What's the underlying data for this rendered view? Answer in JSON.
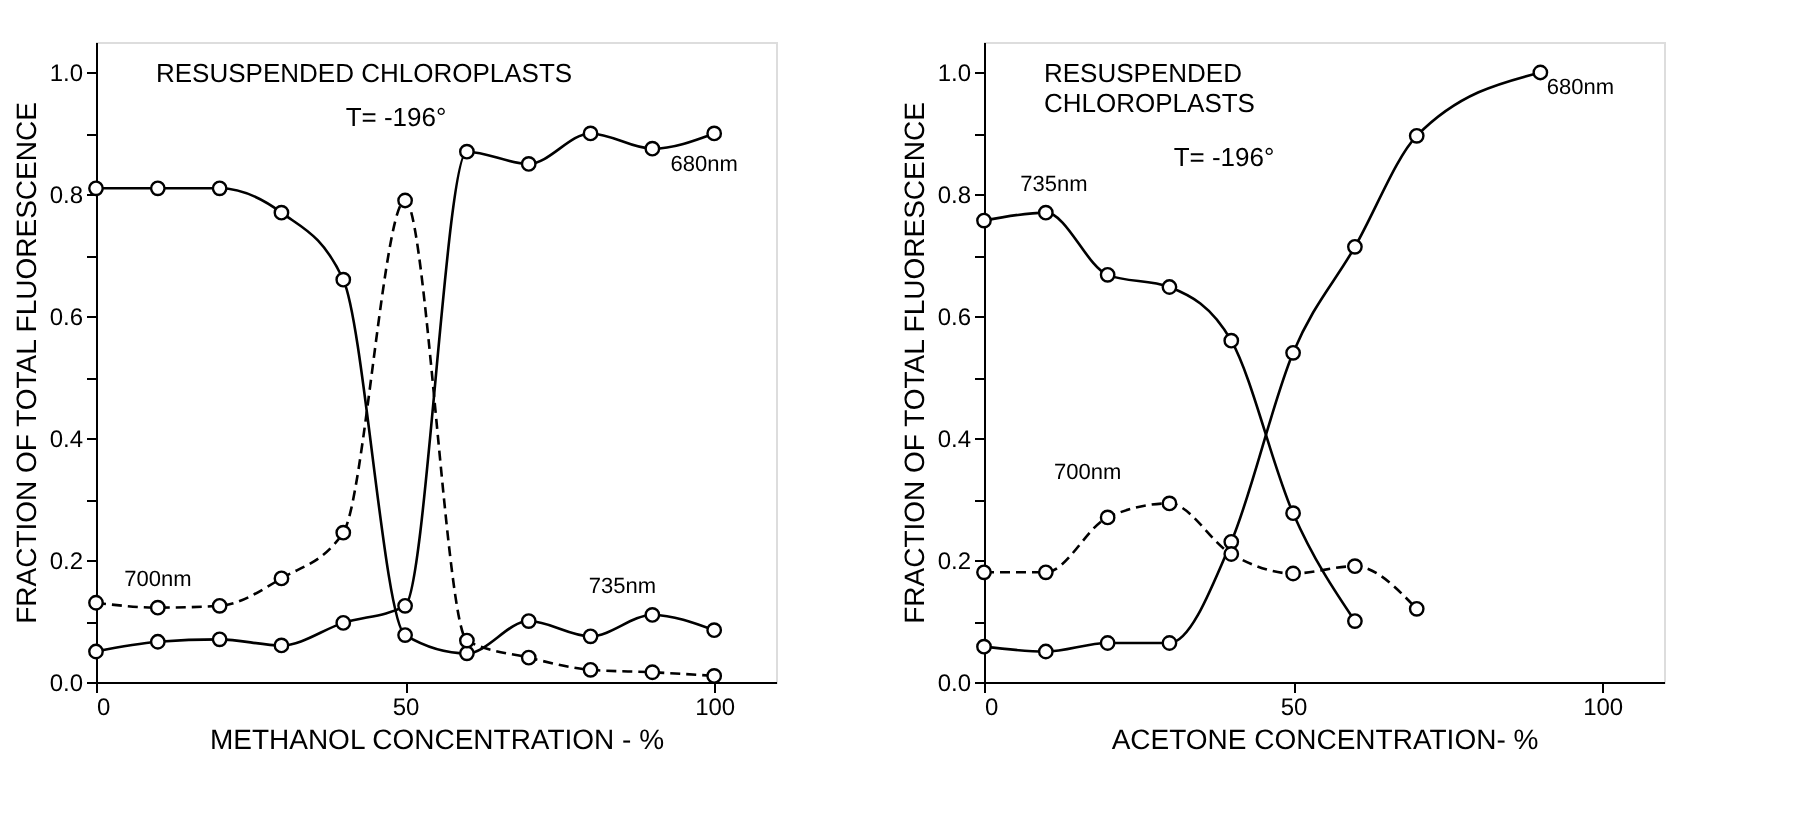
{
  "chart_data": [
    {
      "type": "line",
      "title": "RESUSPENDED      CHLOROPLASTS",
      "subtitle": "T= -196°",
      "xlabel": "METHANOL   CONCENTRATION - %",
      "ylabel": "FRACTION OF TOTAL FLUORESCENCE",
      "xlim": [
        0,
        110
      ],
      "xticks": [
        0,
        50,
        100
      ],
      "ylim": [
        0,
        1.05
      ],
      "yticks": [
        {
          "value": 0,
          "label": "0.0"
        },
        {
          "value": 0.1,
          "label": null
        },
        0.2,
        {
          "value": 0.3,
          "label": null
        },
        0.4,
        {
          "value": 0.5,
          "label": null
        },
        0.6,
        {
          "value": 0.7,
          "label": null
        },
        0.8,
        {
          "value": 0.9,
          "label": null
        },
        {
          "value": 1.0,
          "label": "1.0"
        }
      ],
      "grid": false,
      "marker": "circle",
      "series": [
        {
          "name": "680nm",
          "color": "#000000",
          "line_style": "solid",
          "x": [
            0,
            10,
            20,
            30,
            40,
            50,
            60,
            70,
            80,
            90,
            100
          ],
          "values": [
            0.05,
            0.066,
            0.07,
            0.06,
            0.097,
            0.125,
            0.87,
            0.85,
            0.9,
            0.875,
            0.9
          ]
        },
        {
          "name": "735nm",
          "color": "#000000",
          "line_style": "solid",
          "x": [
            0,
            10,
            20,
            30,
            40,
            50,
            60,
            70,
            80,
            90,
            100
          ],
          "values": [
            0.81,
            0.81,
            0.81,
            0.77,
            0.66,
            0.077,
            0.047,
            0.1,
            0.075,
            0.11,
            0.085
          ]
        },
        {
          "name": "700nm",
          "color": "#000000",
          "line_style": "dashed",
          "x": [
            0,
            10,
            20,
            30,
            40,
            50,
            60,
            70,
            80,
            90,
            100
          ],
          "values": [
            0.13,
            0.122,
            0.125,
            0.17,
            0.245,
            0.79,
            0.068,
            0.04,
            0.02,
            0.016,
            0.01
          ]
        }
      ]
    },
    {
      "type": "line",
      "title": "RESUSPENDED CHLOROPLASTS",
      "subtitle": "T= -196°",
      "xlabel": "ACETONE CONCENTRATION-   %",
      "ylabel": "FRACTION OF TOTAL FLUORESCENCE",
      "xlim": [
        0,
        110
      ],
      "xticks": [
        0,
        50,
        100
      ],
      "ylim": [
        0,
        1.05
      ],
      "yticks": [
        {
          "value": 0,
          "label": "0.0"
        },
        {
          "value": 0.1,
          "label": null
        },
        0.2,
        {
          "value": 0.3,
          "label": null
        },
        0.4,
        {
          "value": 0.5,
          "label": null
        },
        0.6,
        {
          "value": 0.7,
          "label": null
        },
        0.8,
        {
          "value": 0.9,
          "label": null
        },
        {
          "value": 1.0,
          "label": "1.0"
        }
      ],
      "grid": false,
      "marker": "circle",
      "series": [
        {
          "name": "680nm",
          "color": "#000000",
          "line_style": "solid",
          "x": [
            0,
            10,
            20,
            30,
            40,
            50,
            60,
            70,
            90
          ],
          "values": [
            0.058,
            0.05,
            0.064,
            0.064,
            0.23,
            0.54,
            0.714,
            0.896,
            1.0
          ]
        },
        {
          "name": "735nm",
          "color": "#000000",
          "line_style": "solid",
          "x": [
            0,
            10,
            20,
            30,
            40,
            50,
            60
          ],
          "values": [
            0.757,
            0.77,
            0.668,
            0.648,
            0.56,
            0.277,
            0.1
          ]
        },
        {
          "name": "700nm",
          "color": "#000000",
          "line_style": "dashed",
          "x": [
            0,
            10,
            20,
            30,
            40,
            50,
            60,
            70
          ],
          "values": [
            0.18,
            0.18,
            0.27,
            0.293,
            0.21,
            0.178,
            0.19,
            0.12
          ]
        }
      ]
    }
  ]
}
